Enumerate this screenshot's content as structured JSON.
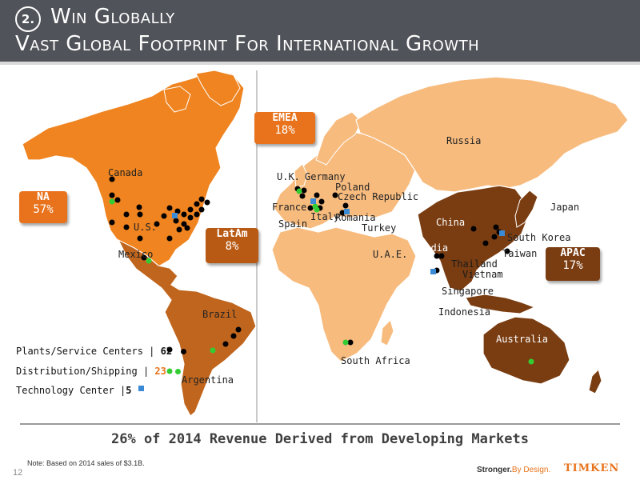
{
  "header": {
    "badge": "2.",
    "title_line1": "Win Globally",
    "title_line2": "Vast Global Footprint For International Growth"
  },
  "colors": {
    "header_bg": "#505359",
    "na_region": "#ef8420",
    "latam_region": "#c0651d",
    "emea_region": "#f7bb7e",
    "apac_region": "#7a3d12",
    "plant_dot": "#000000",
    "distribution_dot": "#33cc33",
    "technology_square": "#3b8ad6",
    "accent": "#e8731c"
  },
  "callouts": {
    "na": {
      "name": "NA",
      "pct": "57%"
    },
    "latam": {
      "name": "LatAm",
      "pct": "8%"
    },
    "emea": {
      "name": "EMEA",
      "pct": "18%"
    },
    "apac": {
      "name": "APAC",
      "pct": "17%"
    }
  },
  "countries": {
    "canada": "Canada",
    "us": "U.S.",
    "mexico": "Mexico",
    "brazil": "Brazil",
    "argentina": "Argentina",
    "uk": "U.K.",
    "germany": "Germany",
    "poland": "Poland",
    "czech": "Czech Republic",
    "france": "France",
    "spain": "Spain",
    "italy": "Italy",
    "romania": "Romania",
    "turkey": "Turkey",
    "uae": "U.A.E.",
    "russia": "Russia",
    "china": "China",
    "japan": "Japan",
    "south_korea": "South Korea",
    "taiwan": "Taiwan",
    "india": "India",
    "thailand": "Thailand",
    "vietnam": "Vietnam",
    "singapore": "Singapore",
    "indonesia": "Indonesia",
    "australia": "Australia",
    "south_africa": "South Africa"
  },
  "legend": {
    "plants": {
      "label": "Plants/Service Centers |",
      "count": "62"
    },
    "distribution": {
      "label": "Distribution/Shipping |",
      "count": "23"
    },
    "technology": {
      "label": "Technology Center |",
      "count": "5"
    }
  },
  "banner": "26% of 2014 Revenue Derived from Developing Markets",
  "note": "Note: Based on 2014 sales of $3.1B.",
  "page_number": "12",
  "tagline": {
    "a": "Stronger.",
    "b": "By Design."
  },
  "logo": "TIMKEN"
}
